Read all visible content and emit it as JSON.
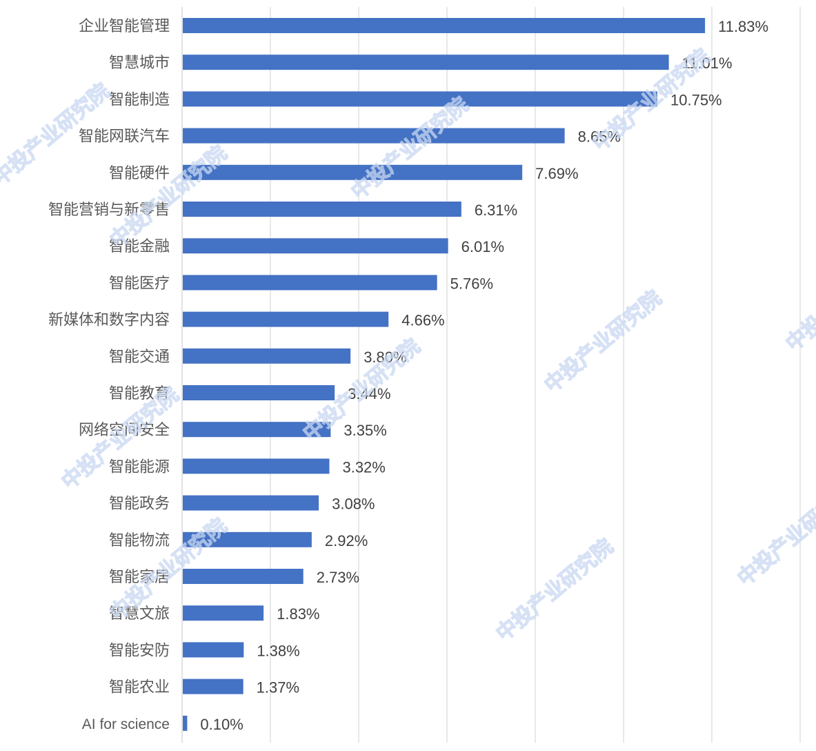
{
  "chart_data": {
    "type": "bar",
    "orientation": "horizontal",
    "title": "",
    "xlabel": "",
    "ylabel": "",
    "xlim": [
      0,
      14
    ],
    "grid": "vertical gridlines every 2",
    "x_tick_labels_visible": false,
    "bar_color": "#4472C4",
    "categories": [
      "企业智能管理",
      "智慧城市",
      "智能制造",
      "智能网联汽车",
      "智能硬件",
      "智能营销与新零售",
      "智能金融",
      "智能医疗",
      "新媒体和数字内容",
      "智能交通",
      "智能教育",
      "网络空间安全",
      "智能能源",
      "智能政务",
      "智能物流",
      "智能家居",
      "智慧文旅",
      "智能安防",
      "智能农业",
      "AI for science"
    ],
    "values": [
      11.83,
      11.01,
      10.75,
      8.65,
      7.69,
      6.31,
      6.01,
      5.76,
      4.66,
      3.8,
      3.44,
      3.35,
      3.32,
      3.08,
      2.92,
      2.73,
      1.83,
      1.38,
      1.37,
      0.1
    ],
    "data_labels": [
      "11.83%",
      "11.01%",
      "10.75%",
      "8.65%",
      "7.69%",
      "6.31%",
      "6.01%",
      "5.76%",
      "4.66%",
      "3.80%",
      "3.44%",
      "3.35%",
      "3.32%",
      "3.08%",
      "2.92%",
      "2.73%",
      "1.83%",
      "1.38%",
      "1.37%",
      "0.10%"
    ]
  },
  "watermark": "中投产业研究院"
}
